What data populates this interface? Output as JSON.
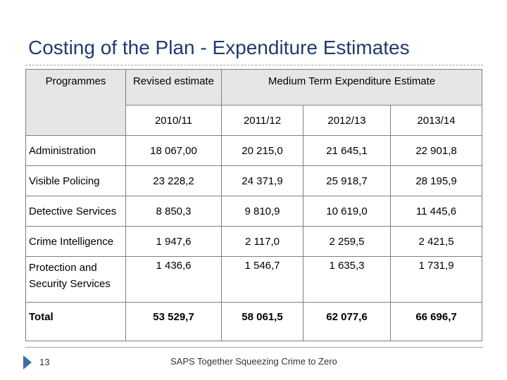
{
  "title": "Costing of the Plan - Expenditure Estimates",
  "table": {
    "header_programmes": "Programmes",
    "header_revised": "Revised estimate",
    "header_mtee": "Medium Term Expenditure Estimate",
    "years": [
      "2010/11",
      "2011/12",
      "2012/13",
      "2013/14"
    ],
    "rows": [
      {
        "label": "Administration",
        "values": [
          "18 067,00",
          "20 215,0",
          "21 645,1",
          "22 901,8"
        ]
      },
      {
        "label": "Visible Policing",
        "values": [
          "23 228,2",
          "24 371,9",
          "25 918,7",
          "28 195,9"
        ]
      },
      {
        "label": "Detective Services",
        "values": [
          "8 850,3",
          "9 810,9",
          "10 619,0",
          "11 445,6"
        ]
      },
      {
        "label": "Crime Intelligence",
        "values": [
          "1 947,6",
          "2 117,0",
          "2 259,5",
          "2 421,5"
        ]
      },
      {
        "label": "Protection and Security Services",
        "values": [
          "1 436,6",
          "1 546,7",
          "1 635,3",
          "1 731,9"
        ]
      }
    ],
    "total": {
      "label": "Total",
      "values": [
        "53 529,7",
        "58 061,5",
        "62 077,6",
        "66 696,7"
      ]
    }
  },
  "footer": {
    "page_number": "13",
    "text": "SAPS Together Squeezing Crime to Zero"
  }
}
